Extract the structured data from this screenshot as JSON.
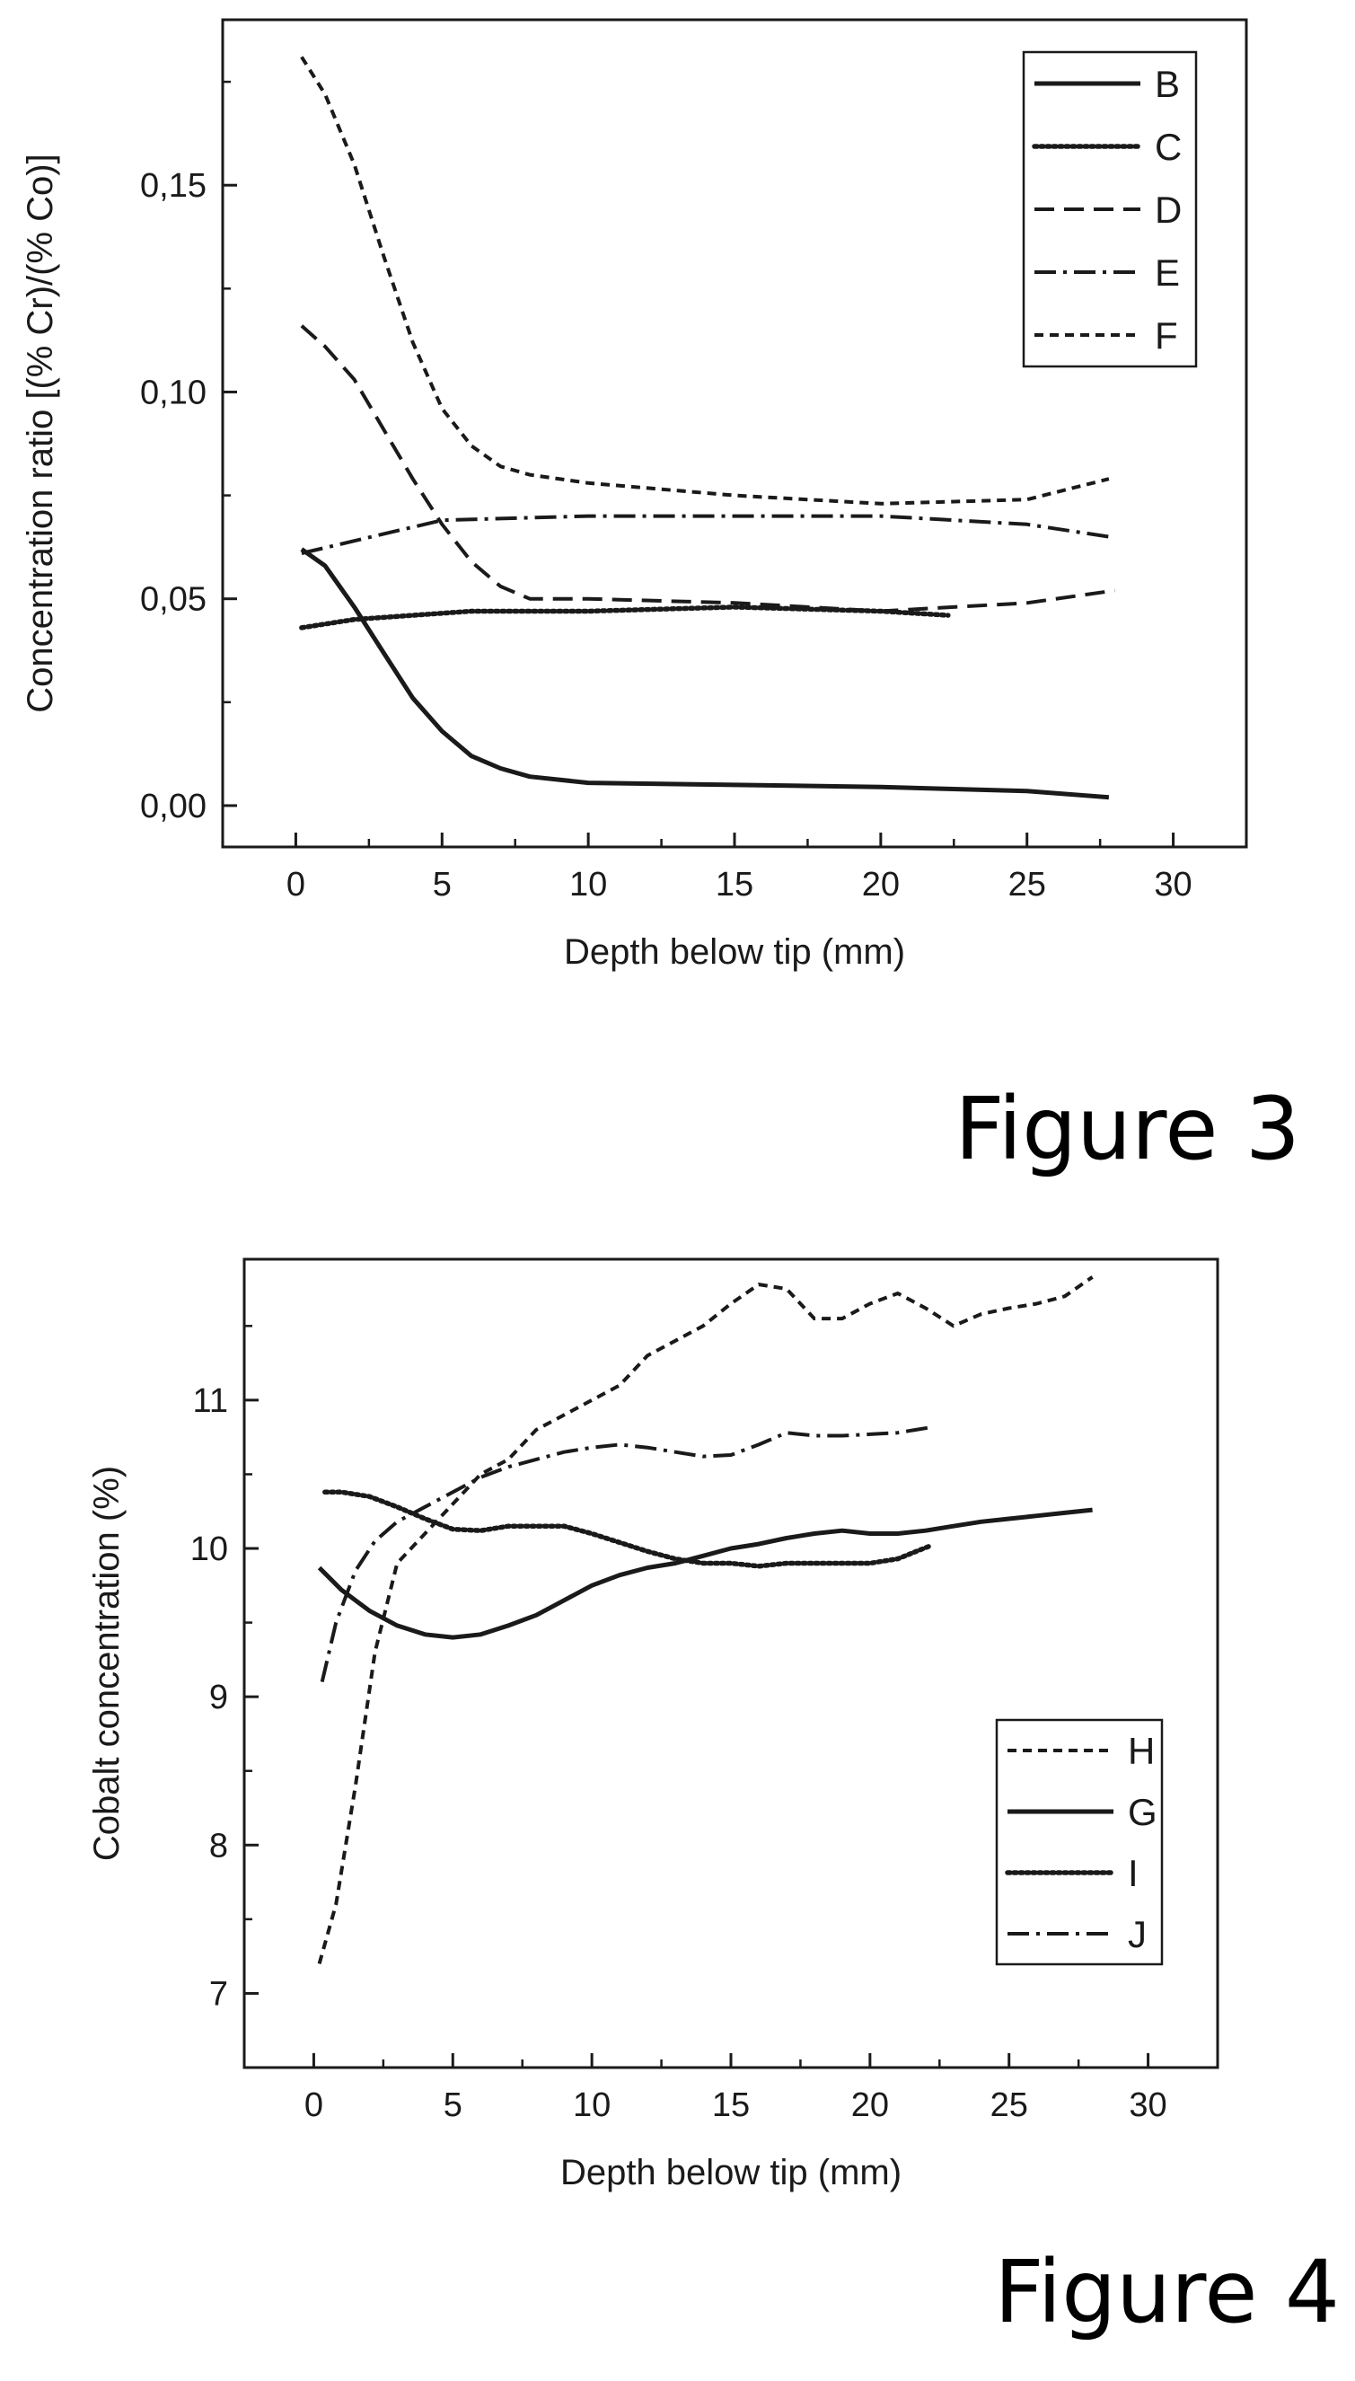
{
  "figures": [
    {
      "caption": "Figure 3"
    },
    {
      "caption": "Figure 4"
    }
  ],
  "chart_data": [
    {
      "type": "line",
      "xlabel": "Depth below tip (mm)",
      "ylabel": "Concentration ratio [(% Cr)/(% Co)]",
      "xlim": [
        -2.5,
        32.5
      ],
      "ylim": [
        -0.01,
        0.19
      ],
      "xticks": [
        0,
        5,
        10,
        15,
        20,
        25,
        30
      ],
      "xtick_labels": [
        "0",
        "5",
        "10",
        "15",
        "20",
        "25",
        "30"
      ],
      "yticks": [
        0.0,
        0.05,
        0.1,
        0.15
      ],
      "ytick_labels": [
        "0,00",
        "0,05",
        "0,10",
        "0,15"
      ],
      "grid": false,
      "legend_position": "top-right",
      "series": [
        {
          "name": "B",
          "style": "solid",
          "x": [
            0.2,
            1,
            2,
            3,
            4,
            5,
            6,
            7,
            8,
            10,
            15,
            20,
            25,
            27.8
          ],
          "y": [
            0.062,
            0.058,
            0.048,
            0.037,
            0.026,
            0.018,
            0.012,
            0.009,
            0.007,
            0.0055,
            0.005,
            0.0045,
            0.0035,
            0.002
          ]
        },
        {
          "name": "C",
          "style": "dotted",
          "x": [
            0.2,
            2,
            4,
            6,
            10,
            15,
            20,
            22.3
          ],
          "y": [
            0.043,
            0.045,
            0.046,
            0.047,
            0.047,
            0.048,
            0.047,
            0.046
          ]
        },
        {
          "name": "D",
          "style": "dashed",
          "x": [
            0.2,
            1,
            2,
            3,
            4,
            5,
            6,
            7,
            8,
            10,
            15,
            20,
            25,
            28
          ],
          "y": [
            0.116,
            0.111,
            0.103,
            0.091,
            0.079,
            0.068,
            0.059,
            0.053,
            0.05,
            0.05,
            0.049,
            0.047,
            0.049,
            0.052
          ]
        },
        {
          "name": "E",
          "style": "dashdot",
          "x": [
            0.2,
            2,
            5,
            10,
            15,
            20,
            25,
            27.8
          ],
          "y": [
            0.061,
            0.064,
            0.069,
            0.07,
            0.07,
            0.07,
            0.068,
            0.065
          ]
        },
        {
          "name": "F",
          "style": "short-dash",
          "x": [
            0.2,
            1,
            2,
            3,
            4,
            5,
            6,
            7,
            8,
            10,
            15,
            20,
            25,
            27.8
          ],
          "y": [
            0.181,
            0.172,
            0.155,
            0.133,
            0.112,
            0.096,
            0.087,
            0.082,
            0.08,
            0.078,
            0.075,
            0.073,
            0.074,
            0.079
          ]
        }
      ]
    },
    {
      "type": "line",
      "xlabel": "Depth below tip (mm)",
      "ylabel": "Cobalt concentration (%)",
      "xlim": [
        -2.5,
        32.5
      ],
      "ylim": [
        6.5,
        11.95
      ],
      "xticks": [
        0,
        5,
        10,
        15,
        20,
        25,
        30
      ],
      "xtick_labels": [
        "0",
        "5",
        "10",
        "15",
        "20",
        "25",
        "30"
      ],
      "yticks": [
        7,
        8,
        9,
        10,
        11
      ],
      "ytick_labels": [
        "7",
        "8",
        "9",
        "10",
        "11"
      ],
      "grid": false,
      "legend_position": "bottom-right",
      "series": [
        {
          "name": "H",
          "style": "short-dash",
          "x": [
            0.2,
            0.8,
            1.5,
            2.2,
            3,
            4,
            5,
            6,
            7,
            8,
            9,
            10,
            11,
            12,
            13,
            14,
            15,
            16,
            17,
            18,
            19,
            20,
            21,
            22,
            23,
            24,
            25,
            26,
            27,
            28
          ],
          "y": [
            7.2,
            7.6,
            8.4,
            9.3,
            9.9,
            10.1,
            10.3,
            10.5,
            10.6,
            10.8,
            10.9,
            11.0,
            11.1,
            11.3,
            11.4,
            11.5,
            11.65,
            11.78,
            11.75,
            11.55,
            11.55,
            11.65,
            11.72,
            11.62,
            11.5,
            11.58,
            11.62,
            11.65,
            11.7,
            11.83
          ]
        },
        {
          "name": "G",
          "style": "solid",
          "x": [
            0.2,
            1,
            2,
            3,
            4,
            5,
            6,
            7,
            8,
            9,
            10,
            11,
            12,
            13,
            14,
            15,
            16,
            17,
            18,
            19,
            20,
            21,
            22,
            23,
            24,
            25,
            26,
            27,
            28
          ],
          "y": [
            9.87,
            9.72,
            9.58,
            9.48,
            9.42,
            9.4,
            9.42,
            9.48,
            9.55,
            9.65,
            9.75,
            9.82,
            9.87,
            9.9,
            9.95,
            10.0,
            10.03,
            10.07,
            10.1,
            10.12,
            10.1,
            10.1,
            10.12,
            10.15,
            10.18,
            10.2,
            10.22,
            10.24,
            10.26
          ]
        },
        {
          "name": "I",
          "style": "dotted",
          "x": [
            0.4,
            1,
            2,
            3,
            4,
            5,
            6,
            7,
            8,
            9,
            10,
            11,
            12,
            13,
            14,
            15,
            16,
            17,
            18,
            19,
            20,
            21,
            22.2
          ],
          "y": [
            10.38,
            10.38,
            10.35,
            10.28,
            10.2,
            10.13,
            10.12,
            10.15,
            10.15,
            10.15,
            10.1,
            10.04,
            9.98,
            9.93,
            9.9,
            9.9,
            9.88,
            9.9,
            9.9,
            9.9,
            9.9,
            9.93,
            10.02
          ]
        },
        {
          "name": "J",
          "style": "dashdot",
          "x": [
            0.3,
            0.8,
            1.5,
            2.2,
            3,
            4,
            5,
            6,
            7,
            8,
            9,
            10,
            11,
            12,
            13,
            14,
            15,
            16,
            17,
            18,
            19,
            20,
            21,
            22.3
          ],
          "y": [
            9.1,
            9.5,
            9.85,
            10.05,
            10.18,
            10.28,
            10.38,
            10.48,
            10.55,
            10.6,
            10.65,
            10.68,
            10.7,
            10.68,
            10.65,
            10.62,
            10.63,
            10.7,
            10.78,
            10.76,
            10.76,
            10.77,
            10.78,
            10.82
          ]
        }
      ]
    }
  ]
}
